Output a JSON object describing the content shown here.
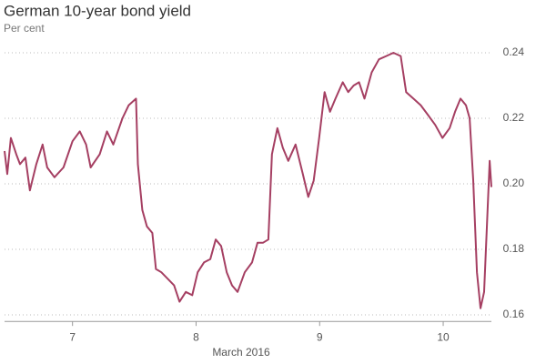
{
  "chart_data": {
    "type": "line",
    "title": "German 10-year bond yield",
    "subtitle": "Per cent",
    "x_label": "March 2016",
    "color": "#a53f62",
    "grid": true,
    "xlim": [
      6.45,
      10.39
    ],
    "xticks": [
      7,
      8,
      9,
      10
    ],
    "ylim": [
      0.158,
      0.246
    ],
    "yticks": [
      0.16,
      0.18,
      {
        "value": 0.2,
        "label": "0.20"
      },
      0.22,
      0.24
    ],
    "x": [
      6.45,
      6.472,
      6.501,
      6.545,
      6.575,
      6.619,
      6.655,
      6.707,
      6.758,
      6.795,
      6.854,
      6.927,
      7.0,
      7.059,
      7.11,
      7.147,
      7.22,
      7.279,
      7.33,
      7.404,
      7.455,
      7.514,
      7.529,
      7.565,
      7.602,
      7.646,
      7.675,
      7.719,
      7.771,
      7.822,
      7.866,
      7.917,
      7.969,
      8.013,
      8.064,
      8.115,
      8.159,
      8.203,
      8.248,
      8.291,
      8.336,
      8.394,
      8.453,
      8.497,
      8.541,
      8.585,
      8.614,
      8.658,
      8.702,
      8.746,
      8.805,
      8.864,
      8.908,
      8.952,
      8.996,
      9.04,
      9.084,
      9.128,
      9.187,
      9.231,
      9.275,
      9.319,
      9.363,
      9.421,
      9.48,
      9.539,
      9.597,
      9.656,
      9.7,
      9.759,
      9.818,
      9.877,
      9.935,
      9.994,
      10.052,
      10.096,
      10.14,
      10.184,
      10.214,
      10.243,
      10.273,
      10.302,
      10.331,
      10.376,
      10.39
    ],
    "values": [
      0.21,
      0.203,
      0.214,
      0.209,
      0.206,
      0.208,
      0.198,
      0.206,
      0.212,
      0.205,
      0.202,
      0.205,
      0.213,
      0.216,
      0.212,
      0.205,
      0.209,
      0.216,
      0.212,
      0.22,
      0.224,
      0.226,
      0.206,
      0.192,
      0.187,
      0.185,
      0.174,
      0.173,
      0.171,
      0.169,
      0.164,
      0.167,
      0.166,
      0.173,
      0.176,
      0.177,
      0.183,
      0.181,
      0.173,
      0.169,
      0.167,
      0.173,
      0.176,
      0.182,
      0.182,
      0.183,
      0.209,
      0.217,
      0.211,
      0.207,
      0.212,
      0.203,
      0.196,
      0.201,
      0.214,
      0.228,
      0.222,
      0.226,
      0.231,
      0.228,
      0.23,
      0.231,
      0.226,
      0.234,
      0.238,
      0.239,
      0.24,
      0.239,
      0.228,
      0.226,
      0.224,
      0.221,
      0.218,
      0.214,
      0.217,
      0.222,
      0.226,
      0.224,
      0.22,
      0.201,
      0.173,
      0.162,
      0.167,
      0.207,
      0.199
    ]
  }
}
